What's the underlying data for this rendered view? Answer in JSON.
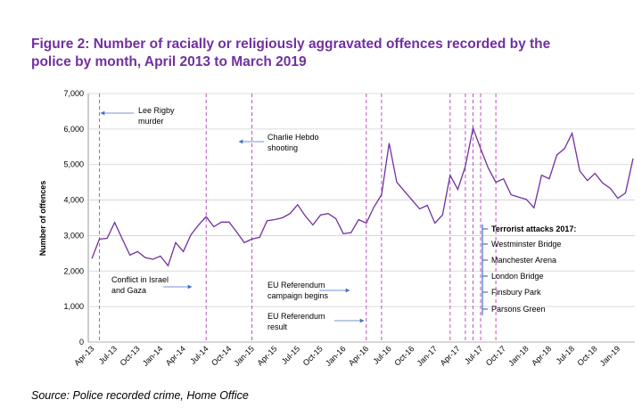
{
  "chart_data": {
    "type": "line",
    "title": [
      "Figure 2: Number of racially or religiously aggravated offences recorded by the",
      "police by month, April 2013 to March 2019"
    ],
    "y_label": "Number of offences",
    "source": "Source: Police recorded crime, Home Office",
    "categories": [
      "Apr-13",
      null,
      null,
      "Jul-13",
      null,
      null,
      "Oct-13",
      null,
      null,
      "Jan-14",
      null,
      null,
      "Apr-14",
      null,
      null,
      "Jul-14",
      null,
      null,
      "Oct-14",
      null,
      null,
      "Jan-15",
      null,
      null,
      "Apr-15",
      null,
      null,
      "Jul-15",
      null,
      null,
      "Oct-15",
      null,
      null,
      "Jan-16",
      null,
      null,
      "Apr-16",
      null,
      null,
      "Jul-16",
      null,
      null,
      "Oct-16",
      null,
      null,
      "Jan-17",
      null,
      null,
      "Apr-17",
      null,
      null,
      "Jul-17",
      null,
      null,
      "Oct-17",
      null,
      null,
      "Jan-18",
      null,
      null,
      "Apr-18",
      null,
      null,
      "Jul-18",
      null,
      null,
      "Oct-18",
      null,
      null,
      "Jan-19",
      null,
      null
    ],
    "series": [
      {
        "color": "#7030a0",
        "values": [
          2350,
          2900,
          2920,
          3370,
          2900,
          2450,
          2550,
          2380,
          2330,
          2420,
          2150,
          2800,
          2550,
          3020,
          3300,
          3530,
          3250,
          3380,
          3380,
          3100,
          2800,
          2900,
          2950,
          3420,
          3450,
          3500,
          3620,
          3870,
          3550,
          3300,
          3580,
          3620,
          3480,
          3050,
          3080,
          3450,
          3350,
          3800,
          4150,
          5600,
          4500,
          4250,
          4000,
          3750,
          3850,
          3350,
          3580,
          4700,
          4300,
          4950,
          6030,
          5450,
          4900,
          4500,
          4600,
          4150,
          4080,
          4020,
          3780,
          4700,
          4600,
          5270,
          5450,
          5880,
          4820,
          4550,
          4750,
          4480,
          4330,
          4050,
          4200,
          5170
        ]
      }
    ],
    "ylim": [
      0,
      7000
    ],
    "yticks": [
      0,
      {
        "value": 1000,
        "label": "1,000"
      },
      {
        "value": 2000,
        "label": "2,000"
      },
      {
        "value": 3000,
        "label": "3,000"
      },
      {
        "value": 4000,
        "label": "4,000"
      },
      {
        "value": 5000,
        "label": "5,000"
      },
      {
        "value": 6000,
        "label": "6,000"
      },
      {
        "value": 7000,
        "label": "7,000"
      }
    ],
    "event_color": "#c050c0",
    "event_lines": [
      1,
      15,
      21,
      36,
      38,
      47,
      49,
      50,
      51,
      53
    ],
    "annotations": [
      [
        "Lee Rigby",
        "murder"
      ],
      [
        "Charlie Hebdo",
        "shooting"
      ],
      [
        "Conflict in Israel",
        "and Gaza"
      ],
      [
        "EU Referendum",
        "campaign begins"
      ],
      [
        "EU Referendum",
        "result"
      ]
    ],
    "attacks_box": {
      "heading": "Terrorist attacks 2017:",
      "items": [
        "Westminster Bridge",
        "Manchester Arena",
        "London Bridge",
        "Finsbury Park",
        "Parsons Green"
      ]
    }
  }
}
